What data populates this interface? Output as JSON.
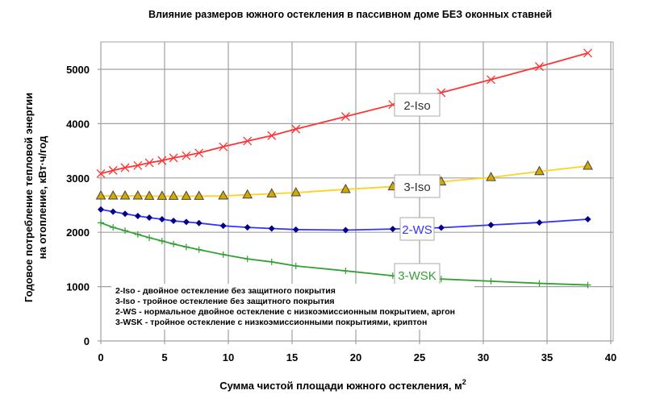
{
  "chart_data": {
    "type": "line",
    "title": "Влияние размеров южного остекления в пассивном доме БЕЗ оконных ставней",
    "xlabel": "Сумма чистой площади южного остекления, м",
    "xlabel_sup": "2",
    "ylabel_lines": [
      "Годовое потребление тепловой энергии",
      "на отопление, кВт·ч/год"
    ],
    "xlim": [
      0,
      40
    ],
    "ylim": [
      0,
      5500
    ],
    "x_ticks": [
      0,
      5,
      10,
      15,
      20,
      25,
      30,
      35,
      40
    ],
    "y_ticks": [
      0,
      1000,
      2000,
      3000,
      4000,
      5000
    ],
    "grid": true,
    "x": [
      0,
      0.96,
      1.9,
      2.9,
      3.8,
      4.8,
      5.7,
      6.7,
      7.7,
      9.6,
      11.5,
      13.4,
      15.3,
      19.2,
      22.9,
      26.7,
      30.6,
      34.4,
      38.2
    ],
    "series": [
      {
        "name": "2-Iso",
        "color": "#ff3333",
        "marker": "x",
        "values": [
          3080,
          3140,
          3190,
          3230,
          3280,
          3320,
          3370,
          3410,
          3460,
          3575,
          3680,
          3780,
          3900,
          4130,
          4350,
          4570,
          4810,
          5050,
          5300
        ]
      },
      {
        "name": "3-Iso",
        "color": "#ffd21e",
        "marker": "triangle",
        "values": [
          2670,
          2670,
          2670,
          2670,
          2665,
          2665,
          2665,
          2665,
          2665,
          2670,
          2690,
          2710,
          2730,
          2790,
          2840,
          2930,
          3010,
          3120,
          3220
        ]
      },
      {
        "name": "2-WS",
        "color": "#3333ff",
        "marker": "diamond",
        "values": [
          2420,
          2380,
          2340,
          2300,
          2270,
          2240,
          2210,
          2190,
          2170,
          2120,
          2090,
          2070,
          2050,
          2040,
          2060,
          2085,
          2135,
          2180,
          2240
        ]
      },
      {
        "name": "3-WSK",
        "color": "#33a033",
        "marker": "plus",
        "values": [
          2175,
          2090,
          2030,
          1960,
          1900,
          1840,
          1785,
          1730,
          1680,
          1590,
          1510,
          1455,
          1380,
          1290,
          1200,
          1140,
          1100,
          1060,
          1030
        ]
      }
    ],
    "legend": [
      "2-Iso - двойное остекление без защитного покрытия",
      "3-Iso - тройное остекление без защитного покрытия",
      "2-WS - нормальное двойное остекление с низкоэмиссионным покрытием, аргон",
      "3-WSK - тройное остекление с низкоэмиссионными покрытиями, криптон"
    ],
    "legend_placement": "bottom-left",
    "series_label_colors": {
      "2-Iso": "#333333",
      "3-Iso": "#333333",
      "2-WS": "#3333ff",
      "3-WSK": "#33a033"
    }
  }
}
